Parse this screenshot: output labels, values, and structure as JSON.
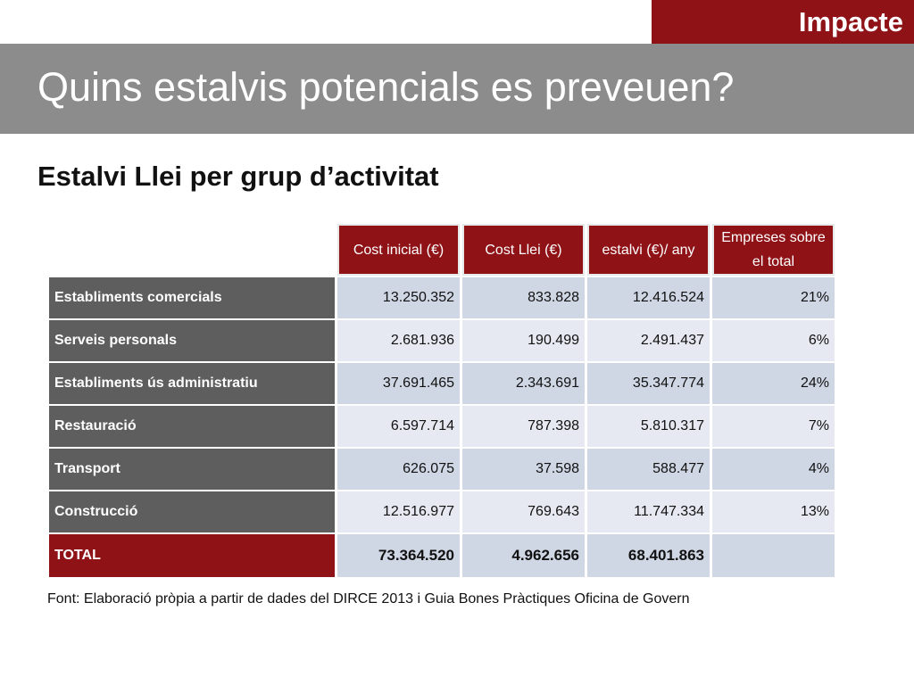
{
  "tag": "Impacte",
  "title": "Quins estalvis potencials es preveuen?",
  "subtitle": "Estalvi Llei per grup d’activitat",
  "table": {
    "headers": [
      "Cost inicial (€)",
      "Cost Llei (€)",
      "estalvi (€)/ any",
      "Empreses sobre el total"
    ],
    "rows": [
      {
        "label": "Establiments comercials",
        "values": [
          "13.250.352",
          "833.828",
          "12.416.524",
          "21%"
        ]
      },
      {
        "label": "Serveis personals",
        "values": [
          "2.681.936",
          "190.499",
          "2.491.437",
          "6%"
        ]
      },
      {
        "label": "Establiments ús administratiu",
        "values": [
          "37.691.465",
          "2.343.691",
          "35.347.774",
          "24%"
        ]
      },
      {
        "label": "Restauració",
        "values": [
          "6.597.714",
          "787.398",
          "5.810.317",
          "7%"
        ]
      },
      {
        "label": "Transport",
        "values": [
          "626.075",
          "37.598",
          "588.477",
          "4%"
        ]
      },
      {
        "label": "Construcció",
        "values": [
          "12.516.977",
          "769.643",
          "11.747.334",
          "13%"
        ]
      }
    ],
    "total": {
      "label": "TOTAL",
      "values": [
        "73.364.520",
        "4.962.656",
        "68.401.863",
        ""
      ]
    }
  },
  "source": "Font: Elaboració pròpia a partir de dades del DIRCE 2013 i Guia Bones Pràctiques Oficina de Govern",
  "colors": {
    "accent": "#8f1217",
    "title_bar": "#8c8c8c",
    "row_header": "#5e5e5e",
    "cell": "#cfd6e4"
  }
}
